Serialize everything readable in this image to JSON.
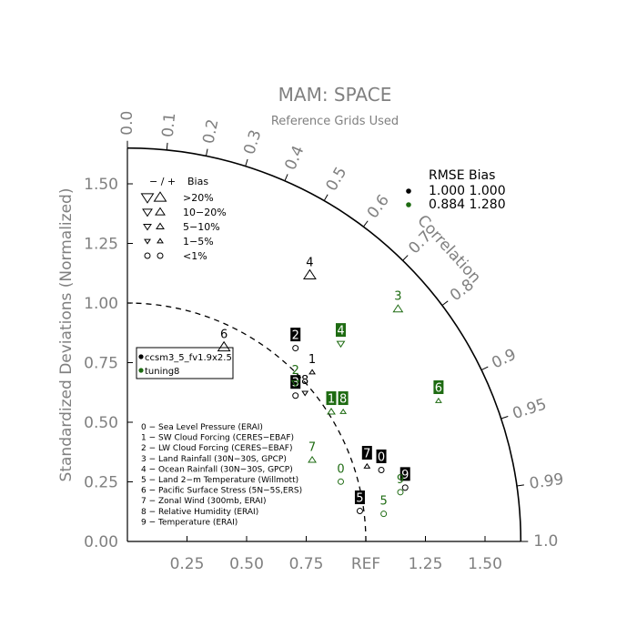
{
  "chart_data": {
    "type": "taylor",
    "title": "MAM: SPACE",
    "subtitle": "Reference Grids Used",
    "ylabel": "Standardized Deviations (Normalized)",
    "correlation_label": "Correlation",
    "ref_label": "REF",
    "x_ticks": [
      "0.25",
      "0.50",
      "0.75",
      "1.25",
      "1.50"
    ],
    "x_tick_values": [
      0.25,
      0.5,
      0.75,
      1.25,
      1.5
    ],
    "y_ticks": [
      "0.00",
      "0.25",
      "0.50",
      "0.75",
      "1.00",
      "1.25",
      "1.50"
    ],
    "y_tick_values": [
      0,
      0.25,
      0.5,
      0.75,
      1.0,
      1.25,
      1.5
    ],
    "corr_ticks": [
      "0.0",
      "0.1",
      "0.2",
      "0.3",
      "0.4",
      "0.5",
      "0.6",
      "0.7",
      "0.8",
      "0.9",
      "0.95",
      "0.99",
      "1.0"
    ],
    "corr_tick_values": [
      0.0,
      0.1,
      0.2,
      0.3,
      0.4,
      0.5,
      0.6,
      0.7,
      0.8,
      0.9,
      0.95,
      0.99,
      1.0
    ],
    "max_std": 1.65,
    "ref_std": 1.0,
    "bias_legend": {
      "header_sign": "−  /  +",
      "header_label": "Bias",
      "rows": [
        {
          "label": ">20%",
          "size": 4
        },
        {
          "label": "10−20%",
          "size": 3
        },
        {
          "label": "5−10%",
          "size": 2
        },
        {
          "label": "1−5%",
          "size": 1
        },
        {
          "label": "<1%",
          "size": 0
        }
      ]
    },
    "rmse_legend": {
      "header": "RMSE  Bias",
      "rows": [
        {
          "rmse": "1.000",
          "bias": "1.000",
          "color": "#000000"
        },
        {
          "rmse": "0.884",
          "bias": "1.280",
          "color": "#1e6b12"
        }
      ]
    },
    "case_legend": [
      {
        "name": "ccsm3_5_fv1.9x2.5",
        "color": "#000000"
      },
      {
        "name": "tuning8",
        "color": "#1e6b12"
      }
    ],
    "variables": [
      "0 − Sea Level Pressure (ERAI)",
      "1 − SW Cloud Forcing (CERES−EBAF)",
      "2 − LW Cloud Forcing (CERES−EBAF)",
      "3 − Land Rainfall (30N−30S, GPCP)",
      "4 − Ocean Rainfall (30N−30S, GPCP)",
      "5 − Land 2−m Temperature (Willmott)",
      "6 − Pacific Surface Stress (5N−5S,ERS)",
      "7 − Zonal Wind (300mb, ERAI)",
      "8 − Relative Humidity (ERAI)",
      "9 − Temperature (ERAI)"
    ],
    "series": [
      {
        "name": "ccsm3_5_fv1.9x2.5",
        "color": "#000000",
        "points": [
          {
            "label": "0",
            "x": 1.065,
            "y": 0.357,
            "bias_sym": "circle",
            "boxed": true
          },
          {
            "label": "1",
            "x": 0.775,
            "y": 0.767,
            "bias_sym": "up",
            "bias_size": 1,
            "boxed": false
          },
          {
            "label": "2",
            "x": 0.705,
            "y": 0.868,
            "bias_sym": "circle",
            "boxed": true
          },
          {
            "label": "3",
            "x": 0.705,
            "y": 0.669,
            "bias_sym": "circle",
            "boxed": true
          },
          {
            "label": "4",
            "x": 0.765,
            "y": 1.174,
            "bias_sym": "up",
            "bias_size": 4,
            "boxed": false
          },
          {
            "label": "5",
            "x": 0.975,
            "y": 0.185,
            "bias_sym": "circle",
            "boxed": true
          },
          {
            "label": "6",
            "x": 0.405,
            "y": 0.872,
            "bias_sym": "up",
            "bias_size": 4,
            "boxed": false
          },
          {
            "label": "7",
            "x": 1.005,
            "y": 0.372,
            "bias_sym": "up",
            "bias_size": 1,
            "boxed": true
          },
          {
            "label": "8",
            "x": 0.745,
            "y": 0.68,
            "bias_sym": "down",
            "bias_size": 1,
            "boxed": false
          },
          {
            "label": "9",
            "x": 1.165,
            "y": 0.283,
            "bias_sym": "circle",
            "boxed": true
          }
        ]
      },
      {
        "name": "tuning8",
        "color": "#1e6b12",
        "points": [
          {
            "label": "0",
            "x": 0.895,
            "y": 0.308,
            "bias_sym": "circle",
            "boxed": false
          },
          {
            "label": "1",
            "x": 0.855,
            "y": 0.601,
            "bias_sym": "up",
            "bias_size": 2,
            "boxed": true
          },
          {
            "label": "2",
            "x": 0.705,
            "y": 0.722,
            "bias_sym": "down",
            "bias_size": 2,
            "boxed": false
          },
          {
            "label": "3",
            "x": 1.135,
            "y": 1.032,
            "bias_sym": "up",
            "bias_size": 3,
            "boxed": false
          },
          {
            "label": "4",
            "x": 0.895,
            "y": 0.887,
            "bias_sym": "down",
            "bias_size": 2,
            "boxed": true
          },
          {
            "label": "5",
            "x": 1.075,
            "y": 0.173,
            "bias_sym": "circle",
            "boxed": false
          },
          {
            "label": "6",
            "x": 1.305,
            "y": 0.647,
            "bias_sym": "up",
            "bias_size": 1,
            "boxed": true
          },
          {
            "label": "7",
            "x": 0.775,
            "y": 0.399,
            "bias_sym": "up",
            "bias_size": 2,
            "boxed": false
          },
          {
            "label": "8",
            "x": 0.905,
            "y": 0.601,
            "bias_sym": "up",
            "bias_size": 1,
            "boxed": true
          },
          {
            "label": "9",
            "x": 1.145,
            "y": 0.264,
            "bias_sym": "circle",
            "boxed": false
          }
        ]
      }
    ]
  }
}
